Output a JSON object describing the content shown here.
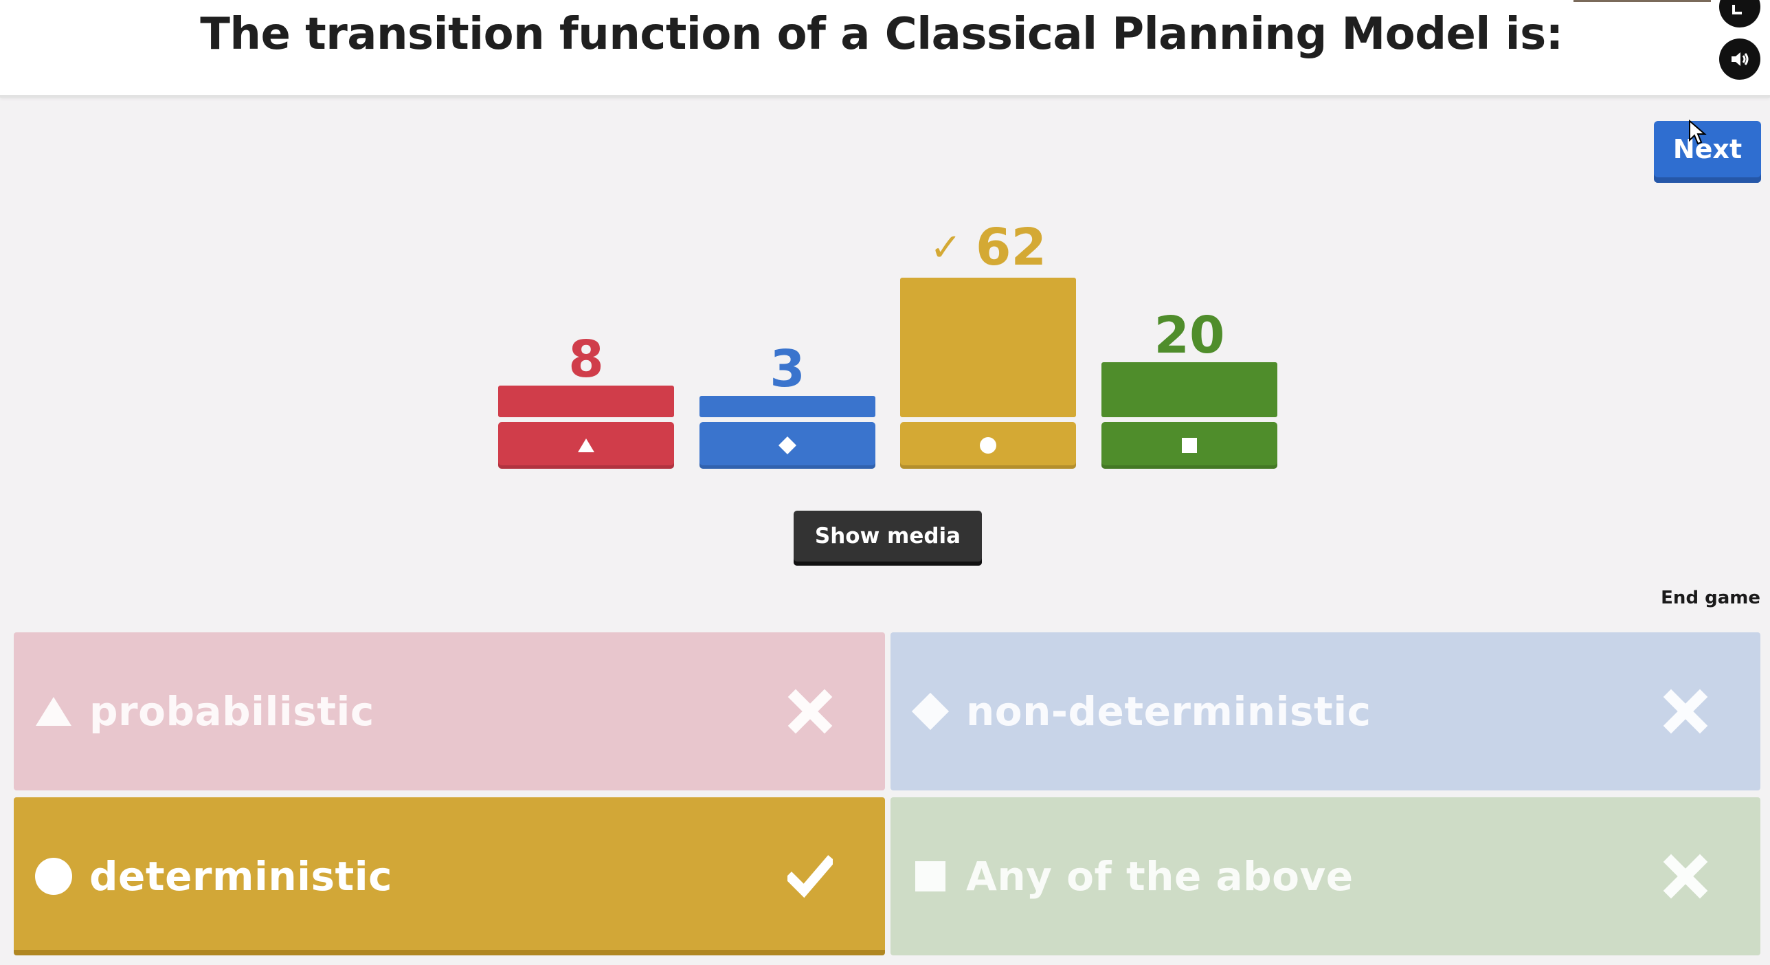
{
  "question": {
    "title": "The transition function of a Classical Planning Model is:"
  },
  "controls": {
    "next_label": "Next",
    "show_media_label": "Show media",
    "end_game_label": "End game"
  },
  "results": [
    {
      "shape": "triangle-icon",
      "count": "8",
      "value": 8,
      "color": "#d03d4a",
      "correct": false
    },
    {
      "shape": "diamond-icon",
      "count": "3",
      "value": 3,
      "color": "#3a74cd",
      "correct": false
    },
    {
      "shape": "circle-icon",
      "count": "62",
      "value": 62,
      "color": "#d4a934",
      "correct": true
    },
    {
      "shape": "square-icon",
      "count": "20",
      "value": 20,
      "color": "#4f8d2b",
      "correct": false
    }
  ],
  "answers": [
    {
      "shape": "triangle-icon",
      "label": "probabilistic",
      "correct": false,
      "color": "#e8c6cd"
    },
    {
      "shape": "diamond-icon",
      "label": "non-deterministic",
      "correct": false,
      "color": "#c8d4e8"
    },
    {
      "shape": "circle-icon",
      "label": "deterministic",
      "correct": true,
      "color": "#d2a737"
    },
    {
      "shape": "square-icon",
      "label": "Any of the above",
      "correct": false,
      "color": "#cedcc6"
    }
  ]
}
